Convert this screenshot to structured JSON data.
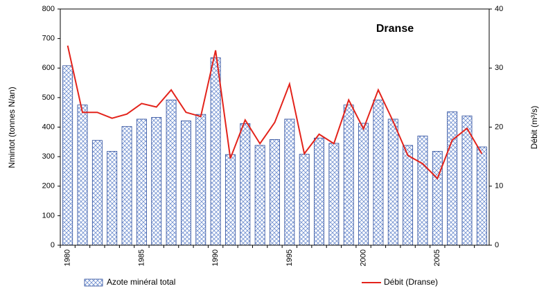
{
  "chart_data": {
    "type": "bar",
    "title": "Dranse",
    "categories": [
      "1980",
      null,
      null,
      null,
      null,
      "1985",
      null,
      null,
      null,
      null,
      "1990",
      null,
      null,
      null,
      null,
      "1995",
      null,
      null,
      null,
      null,
      "2000",
      null,
      null,
      null,
      null,
      "2005",
      null,
      null,
      null
    ],
    "series": [
      {
        "name": "Azote minéral total",
        "type": "bar",
        "color": "#2a4a9a",
        "values": [
          608,
          475,
          355,
          318,
          402,
          427,
          433,
          492,
          421,
          443,
          635,
          307,
          412,
          338,
          358,
          427,
          308,
          363,
          345,
          475,
          413,
          492,
          427,
          338,
          370,
          318,
          452,
          438,
          333
        ]
      },
      {
        "name": "Débit (Dranse)",
        "type": "line",
        "axis": "y2",
        "color": "#e3231b",
        "values": [
          33.8,
          22.5,
          22.5,
          21.5,
          22.2,
          24,
          23.4,
          26.3,
          22.5,
          21.8,
          33,
          14.7,
          21.2,
          17.2,
          20.8,
          27.3,
          15.5,
          18.8,
          17.2,
          24.6,
          19.7,
          26.3,
          21,
          15.2,
          13.8,
          11.3,
          17.8,
          19.8,
          15.5
        ]
      }
    ],
    "y_label": "Nmintot (tonnes N/an)",
    "y2_label": "Débit (m³/s)",
    "ylim": [
      0,
      800
    ],
    "yticks": [
      0,
      100,
      200,
      300,
      400,
      500,
      600,
      700,
      800
    ],
    "y2lim": [
      0,
      40
    ],
    "y2ticks": [
      0,
      10,
      20,
      30,
      40
    ],
    "grid": false
  }
}
